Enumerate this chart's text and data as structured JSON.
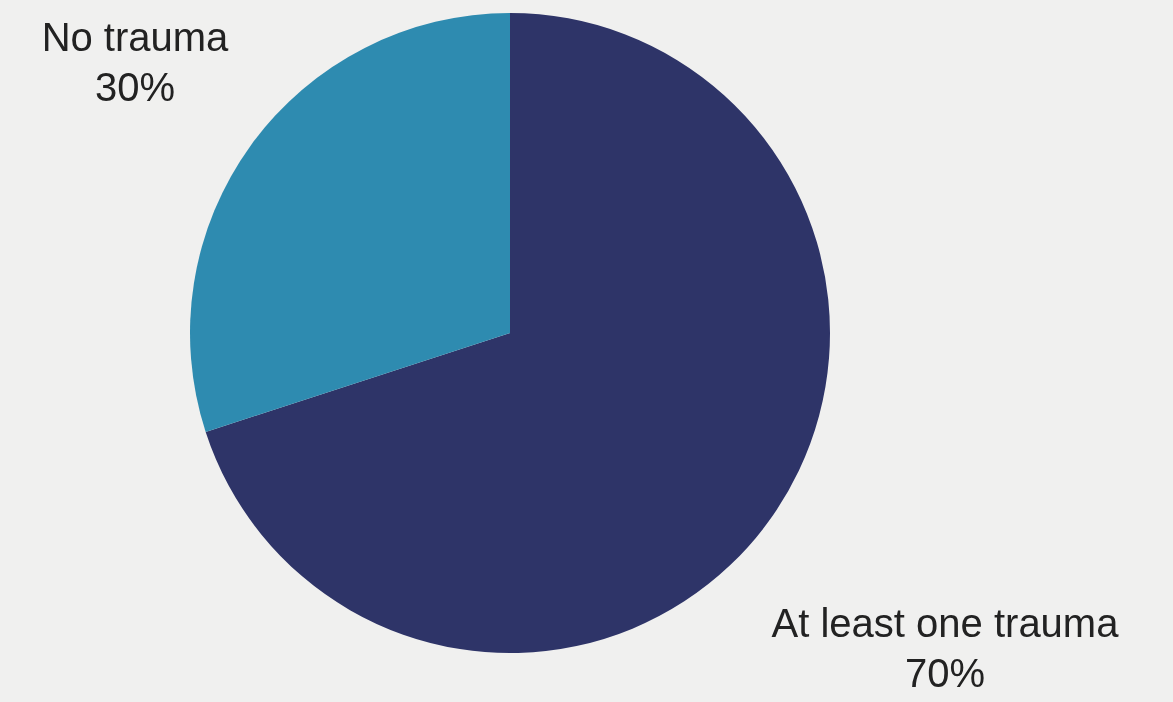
{
  "chart_data": {
    "type": "pie",
    "categories": [
      "At least one trauma",
      "No trauma"
    ],
    "values": [
      70,
      30
    ],
    "colors": [
      "#2e3468",
      "#2e8bb0"
    ],
    "value_labels": [
      "70%",
      "30%"
    ],
    "legend": false
  }
}
